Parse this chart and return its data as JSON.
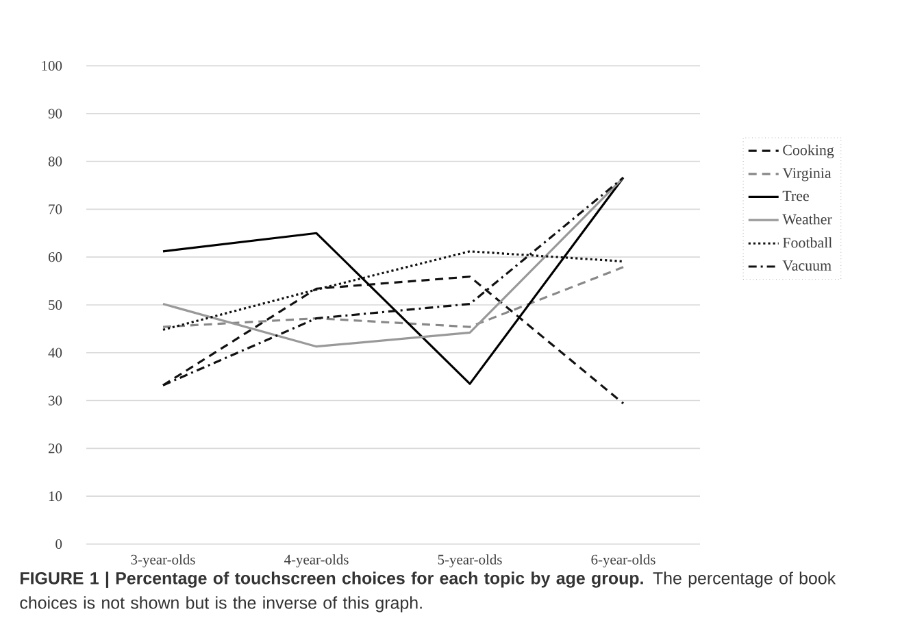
{
  "chart_data": {
    "type": "line",
    "title": "**FIGURE 1 | Percentage of touchscreen choices for each topic by age group.** The percentage of book choices is not shown but is the inverse of this graph.",
    "categories": [
      "3-year-olds",
      "4-year-olds",
      "5-year-olds",
      "6-year-olds"
    ],
    "series": [
      {
        "name": "Cooking",
        "color": "#111111",
        "line_style": "dashed",
        "values": [
          33.2,
          53.4,
          55.9,
          29.4
        ]
      },
      {
        "name": "Virginia",
        "color": "#888888",
        "line_style": "dashed",
        "values": [
          45.4,
          47.2,
          45.4,
          57.9
        ]
      },
      {
        "name": "Tree",
        "color": "#000000",
        "line_style": "solid",
        "values": [
          61.2,
          65.0,
          33.5,
          76.6
        ]
      },
      {
        "name": "Weather",
        "color": "#999999",
        "line_style": "solid",
        "values": [
          50.2,
          41.3,
          44.2,
          76.6
        ]
      },
      {
        "name": "Football",
        "color": "#111111",
        "line_style": "dotted",
        "values": [
          44.8,
          53.2,
          61.2,
          59.1
        ]
      },
      {
        "name": "Vacuum",
        "color": "#111111",
        "line_style": "dashdot",
        "values": [
          33.2,
          47.2,
          50.2,
          76.6
        ]
      }
    ],
    "ylim": [
      0,
      100
    ],
    "yticks": [
      0,
      10,
      20,
      30,
      40,
      50,
      60,
      70,
      80,
      90,
      100
    ],
    "grid": "y",
    "legend": "right"
  }
}
